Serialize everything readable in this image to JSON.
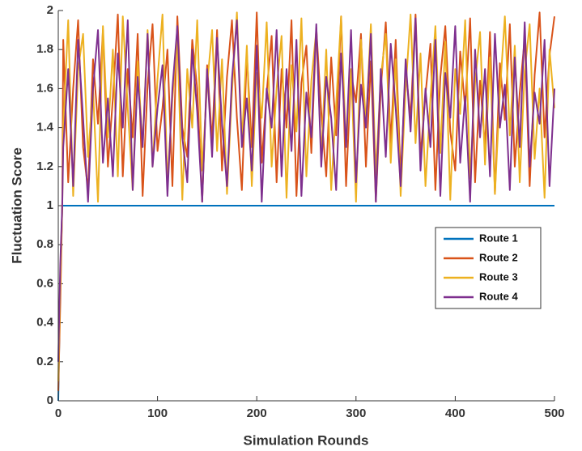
{
  "chart_data": {
    "type": "line",
    "x_label": "Simulation Rounds",
    "y_label": "Fluctuation Score",
    "x": [
      0,
      2,
      4,
      5,
      10,
      15,
      20,
      25,
      30,
      35,
      40,
      45,
      50,
      55,
      60,
      65,
      70,
      75,
      80,
      85,
      90,
      95,
      100,
      105,
      110,
      115,
      120,
      125,
      130,
      135,
      140,
      145,
      150,
      155,
      160,
      165,
      170,
      175,
      180,
      185,
      190,
      195,
      200,
      205,
      210,
      215,
      220,
      225,
      230,
      235,
      240,
      245,
      250,
      255,
      260,
      265,
      270,
      275,
      280,
      285,
      290,
      295,
      300,
      305,
      310,
      315,
      320,
      325,
      330,
      335,
      340,
      345,
      350,
      355,
      360,
      365,
      370,
      375,
      380,
      385,
      390,
      395,
      400,
      405,
      410,
      415,
      420,
      425,
      430,
      435,
      440,
      445,
      450,
      455,
      460,
      465,
      470,
      475,
      480,
      485,
      490,
      495,
      500
    ],
    "series": [
      {
        "name": "Route 1",
        "color": "#0072BD",
        "values": [
          0,
          0.6,
          1,
          1,
          1,
          1,
          1,
          1,
          1,
          1,
          1,
          1,
          1,
          1,
          1,
          1,
          1,
          1,
          1,
          1,
          1,
          1,
          1,
          1,
          1,
          1,
          1,
          1,
          1,
          1,
          1,
          1,
          1,
          1,
          1,
          1,
          1,
          1,
          1,
          1,
          1,
          1,
          1,
          1,
          1,
          1,
          1,
          1,
          1,
          1,
          1,
          1,
          1,
          1,
          1,
          1,
          1,
          1,
          1,
          1,
          1,
          1,
          1,
          1,
          1,
          1,
          1,
          1,
          1,
          1,
          1,
          1,
          1,
          1,
          1,
          1,
          1,
          1,
          1,
          1,
          1,
          1,
          1,
          1,
          1,
          1,
          1,
          1,
          1,
          1,
          1,
          1,
          1,
          1,
          1,
          1,
          1,
          1,
          1,
          1,
          1,
          1,
          1
        ]
      },
      {
        "name": "Route 2",
        "color": "#D95319",
        "values": [
          0.05,
          0.5,
          1.0,
          1.85,
          1.12,
          1.6,
          1.95,
          1.3,
          1.08,
          1.75,
          1.42,
          1.9,
          1.2,
          1.55,
          1.98,
          1.15,
          1.7,
          1.35,
          1.88,
          1.05,
          1.62,
          1.93,
          1.28,
          1.5,
          1.8,
          1.1,
          1.97,
          1.4,
          1.25,
          1.85,
          1.6,
          1.02,
          1.72,
          1.33,
          1.9,
          1.18,
          1.66,
          1.95,
          1.45,
          1.08,
          1.78,
          1.3,
          1.99,
          1.22,
          1.58,
          1.87,
          1.12,
          1.7,
          1.4,
          1.95,
          1.05,
          1.63,
          1.82,
          1.27,
          1.91,
          1.48,
          1.15,
          1.76,
          1.36,
          1.97,
          1.1,
          1.68,
          1.53,
          1.88,
          1.2,
          1.74,
          1.02,
          1.6,
          1.94,
          1.32,
          1.85,
          1.14,
          1.7,
          1.45,
          1.98,
          1.25,
          1.57,
          1.83,
          1.08,
          1.66,
          1.92,
          1.38,
          1.18,
          1.79,
          1.5,
          1.96,
          1.12,
          1.64,
          1.3,
          1.89,
          1.06,
          1.73,
          1.44,
          1.93,
          1.2,
          1.58,
          1.86,
          1.1,
          1.67,
          1.99,
          1.35,
          1.77,
          1.97
        ]
      },
      {
        "name": "Route 3",
        "color": "#EDB120",
        "values": [
          0.1,
          0.6,
          1.0,
          1.4,
          1.95,
          1.05,
          1.7,
          1.88,
          1.25,
          1.6,
          1.02,
          1.92,
          1.35,
          1.8,
          1.15,
          1.97,
          1.5,
          1.08,
          1.74,
          1.3,
          1.9,
          1.2,
          1.65,
          1.98,
          1.12,
          1.55,
          1.85,
          1.03,
          1.7,
          1.4,
          1.95,
          1.18,
          1.62,
          1.9,
          1.28,
          1.75,
          1.06,
          1.58,
          1.99,
          1.33,
          1.82,
          1.1,
          1.68,
          1.45,
          1.94,
          1.2,
          1.6,
          1.87,
          1.04,
          1.72,
          1.38,
          1.96,
          1.15,
          1.64,
          1.9,
          1.25,
          1.8,
          1.08,
          1.52,
          1.97,
          1.3,
          1.7,
          1.02,
          1.85,
          1.42,
          1.93,
          1.16,
          1.66,
          1.88,
          1.22,
          1.75,
          1.05,
          1.6,
          1.98,
          1.32,
          1.78,
          1.1,
          1.55,
          1.92,
          1.27,
          1.84,
          1.03,
          1.7,
          1.47,
          1.95,
          1.14,
          1.63,
          1.89,
          1.21,
          1.76,
          1.06,
          1.58,
          1.97,
          1.36,
          1.82,
          1.12,
          1.69,
          1.93,
          1.24,
          1.6,
          1.04,
          1.8,
          1.5
        ]
      },
      {
        "name": "Route 4",
        "color": "#7E2F8E",
        "values": [
          0.2,
          0.7,
          1.0,
          1.3,
          1.7,
          1.1,
          1.85,
          1.45,
          1.02,
          1.6,
          1.9,
          1.22,
          1.55,
          1.15,
          1.78,
          1.4,
          1.95,
          1.08,
          1.66,
          1.3,
          1.88,
          1.2,
          1.5,
          1.72,
          1.05,
          1.6,
          1.92,
          1.35,
          1.12,
          1.8,
          1.48,
          1.02,
          1.7,
          1.25,
          1.86,
          1.42,
          1.1,
          1.65,
          1.95,
          1.3,
          1.55,
          1.18,
          1.82,
          1.02,
          1.6,
          1.4,
          1.9,
          1.15,
          1.7,
          1.28,
          1.85,
          1.05,
          1.58,
          1.35,
          1.93,
          1.2,
          1.66,
          1.45,
          1.08,
          1.78,
          1.3,
          1.9,
          1.12,
          1.62,
          1.4,
          1.88,
          1.02,
          1.7,
          1.25,
          1.83,
          1.5,
          1.1,
          1.75,
          1.38,
          1.96,
          1.18,
          1.6,
          1.3,
          1.85,
          1.05,
          1.68,
          1.45,
          1.92,
          1.22,
          1.56,
          1.02,
          1.8,
          1.35,
          1.7,
          1.15,
          1.88,
          1.4,
          1.62,
          1.08,
          1.76,
          1.3,
          1.94,
          1.2,
          1.58,
          1.42,
          1.85,
          1.1,
          1.6
        ]
      }
    ],
    "xlim": [
      0,
      500
    ],
    "xticks": [
      0,
      100,
      200,
      300,
      400,
      500
    ],
    "ylim": [
      0,
      2
    ],
    "yticks": [
      0,
      0.2,
      0.4,
      0.6,
      0.8,
      1,
      1.2,
      1.4,
      1.6,
      1.8,
      2
    ],
    "grid": false,
    "legend": "right"
  }
}
